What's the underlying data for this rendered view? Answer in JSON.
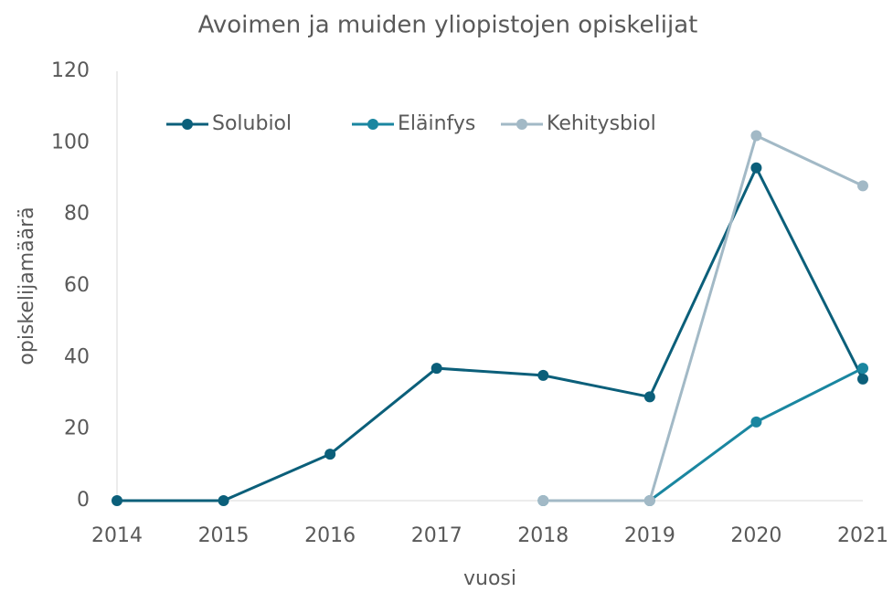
{
  "chart_data": {
    "type": "line",
    "title": "Avoimen ja muiden yliopistojen opiskelijat",
    "xlabel": "vuosi",
    "ylabel": "opiskelijamäärä",
    "categories": [
      "2014",
      "2015",
      "2016",
      "2017",
      "2018",
      "2019",
      "2020",
      "2021"
    ],
    "series": [
      {
        "name": "Solubiol",
        "color": "#0b5f7a",
        "values": [
          0,
          0,
          13,
          37,
          35,
          29,
          93,
          34
        ]
      },
      {
        "name": "Eläinfys",
        "color": "#1a86a0",
        "values": [
          null,
          null,
          null,
          null,
          0,
          0,
          22,
          37
        ]
      },
      {
        "name": "Kehitysbiol",
        "color": "#a2b9c6",
        "values": [
          null,
          null,
          null,
          null,
          0,
          0,
          102,
          88
        ]
      }
    ],
    "ylim": [
      0,
      120
    ],
    "yticks": [
      0,
      20,
      40,
      60,
      80,
      100,
      120
    ],
    "grid": false,
    "legend": "top-left"
  }
}
